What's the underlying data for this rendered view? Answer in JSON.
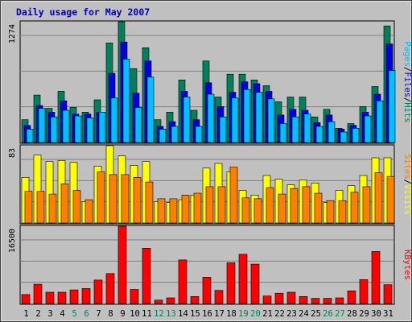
{
  "chart_data": [
    {
      "type": "bar",
      "title": "Daily usage for May 2007",
      "categories": [
        "1",
        "2",
        "3",
        "4",
        "5",
        "6",
        "7",
        "8",
        "9",
        "10",
        "11",
        "12",
        "13",
        "14",
        "15",
        "16",
        "17",
        "18",
        "19",
        "20",
        "21",
        "22",
        "23",
        "24",
        "25",
        "26",
        "27",
        "28",
        "29",
        "30",
        "31"
      ],
      "weekend_days": [
        "5",
        "6",
        "12",
        "13",
        "19",
        "20",
        "26",
        "27"
      ],
      "ylim": [
        0,
        1274
      ],
      "y_tick_label": "1274",
      "side_label": [
        "Pages",
        "Files",
        "Hits"
      ],
      "grid": true,
      "series": [
        {
          "name": "Hits",
          "color": "#00805c",
          "values": [
            240,
            500,
            360,
            540,
            370,
            320,
            450,
            1050,
            1274,
            780,
            1000,
            240,
            320,
            660,
            340,
            860,
            480,
            720,
            720,
            660,
            600,
            430,
            480,
            480,
            270,
            350,
            150,
            200,
            380,
            590,
            1230
          ]
        },
        {
          "name": "Files",
          "color": "#0000e0",
          "values": [
            180,
            390,
            320,
            440,
            300,
            300,
            320,
            730,
            1060,
            520,
            860,
            170,
            220,
            540,
            240,
            630,
            380,
            530,
            640,
            620,
            540,
            290,
            350,
            340,
            210,
            290,
            140,
            180,
            320,
            510,
            1040
          ]
        },
        {
          "name": "Pages",
          "color": "#00c0ff",
          "values": [
            140,
            360,
            270,
            340,
            280,
            260,
            320,
            470,
            880,
            370,
            690,
            140,
            170,
            480,
            170,
            510,
            270,
            470,
            560,
            530,
            460,
            200,
            270,
            300,
            170,
            220,
            110,
            150,
            280,
            440,
            760
          ]
        }
      ]
    },
    {
      "type": "bar",
      "categories": [
        "1",
        "2",
        "3",
        "4",
        "5",
        "6",
        "7",
        "8",
        "9",
        "10",
        "11",
        "12",
        "13",
        "14",
        "15",
        "16",
        "17",
        "18",
        "19",
        "20",
        "21",
        "22",
        "23",
        "24",
        "25",
        "26",
        "27",
        "28",
        "29",
        "30",
        "31"
      ],
      "ylim": [
        0,
        83
      ],
      "y_tick_label": "83",
      "side_label": [
        "Sites",
        "Visits"
      ],
      "grid": true,
      "series": [
        {
          "name": "Visits",
          "color": "#ffff00",
          "values": [
            49,
            73,
            66,
            67,
            65,
            23,
            61,
            83,
            72,
            62,
            66,
            23,
            22,
            25,
            30,
            59,
            64,
            55,
            35,
            30,
            51,
            47,
            41,
            46,
            43,
            22,
            35,
            40,
            51,
            70,
            70
          ]
        },
        {
          "name": "Sites",
          "color": "#ff8000",
          "values": [
            34,
            34,
            31,
            42,
            35,
            25,
            55,
            52,
            52,
            49,
            44,
            26,
            26,
            30,
            32,
            39,
            39,
            60,
            27,
            26,
            38,
            31,
            37,
            39,
            32,
            24,
            24,
            33,
            39,
            54,
            50
          ]
        }
      ]
    },
    {
      "type": "bar",
      "categories": [
        "1",
        "2",
        "3",
        "4",
        "5",
        "6",
        "7",
        "8",
        "9",
        "10",
        "11",
        "12",
        "13",
        "14",
        "15",
        "16",
        "17",
        "18",
        "19",
        "20",
        "21",
        "22",
        "23",
        "24",
        "25",
        "26",
        "27",
        "28",
        "29",
        "30",
        "31"
      ],
      "ylim": [
        0,
        16500
      ],
      "y_tick_label": "16500",
      "side_label": [
        "KBytes"
      ],
      "grid": true,
      "series": [
        {
          "name": "KBytes",
          "color": "#ff0000",
          "values": [
            1900,
            4100,
            2400,
            2400,
            2900,
            3200,
            5000,
            6400,
            16500,
            3000,
            11800,
            720,
            1200,
            9300,
            1500,
            5600,
            2800,
            8700,
            10500,
            8400,
            1600,
            2200,
            2400,
            1500,
            1100,
            1100,
            1200,
            2700,
            5100,
            11100,
            4000
          ]
        }
      ]
    }
  ]
}
